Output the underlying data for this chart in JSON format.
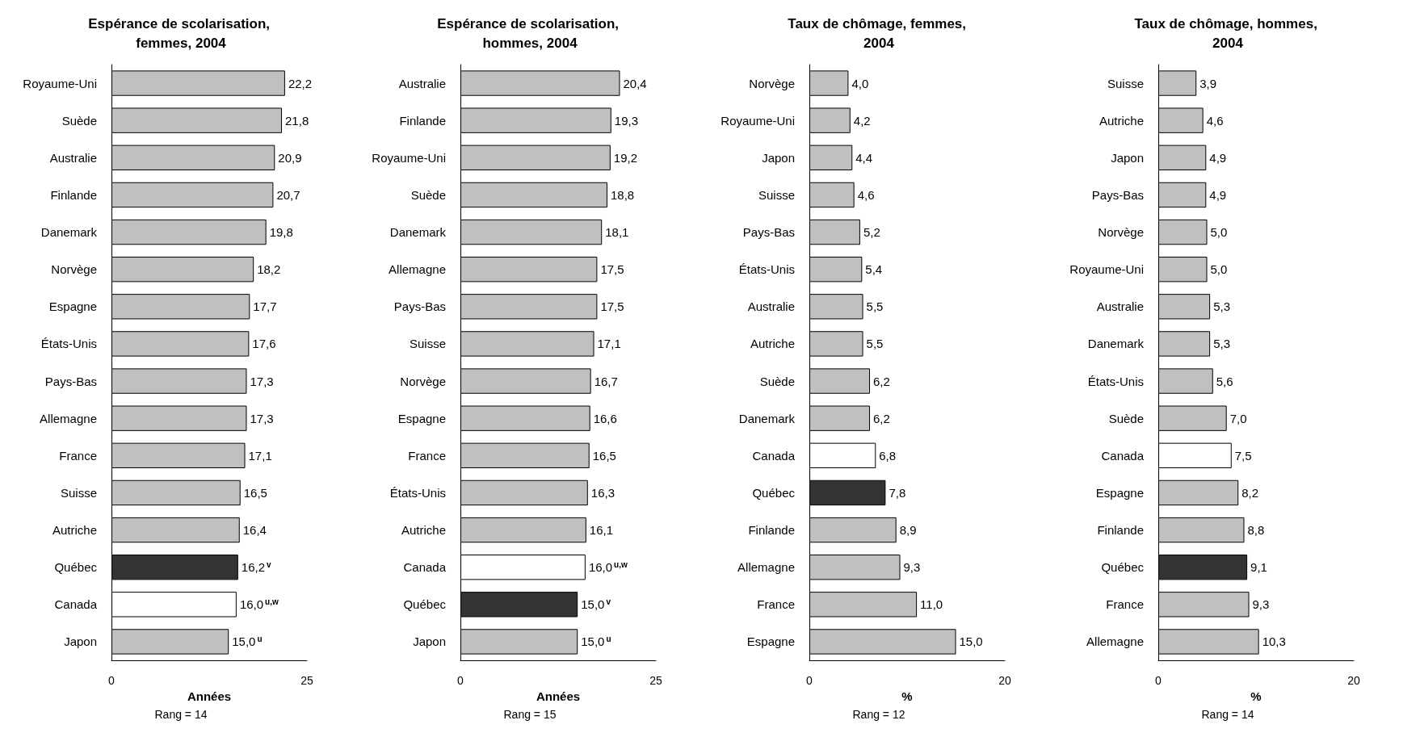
{
  "chart_data": [
    {
      "type": "bar",
      "orientation": "horizontal",
      "title": "Espérance de scolarisation, femmes, 2004",
      "xlabel": "Années",
      "xlim": [
        0,
        25
      ],
      "xticks": [
        0,
        25
      ],
      "grid": false,
      "categories": [
        "Royaume-Uni",
        "Suède",
        "Australie",
        "Finlande",
        "Danemark",
        "Norvège",
        "Espagne",
        "États-Unis",
        "Pays-Bas",
        "Allemagne",
        "France",
        "Suisse",
        "Autriche",
        "Québec",
        "Canada",
        "Japon"
      ],
      "values": [
        22.2,
        21.8,
        20.9,
        20.7,
        19.8,
        18.2,
        17.7,
        17.6,
        17.3,
        17.3,
        17.1,
        16.5,
        16.4,
        16.2,
        16.0,
        15.0
      ],
      "value_labels": [
        "22,2",
        "21,8",
        "20,9",
        "20,7",
        "19,8",
        "18,2",
        "17,7",
        "17,6",
        "17,3",
        "17,3",
        "17,1",
        "16,5",
        "16,4",
        "16,2$^{v}$",
        "16,0$^{u,w}$",
        "15,0$^{u}$"
      ],
      "colors": [
        "#c0c0c0",
        "#c0c0c0",
        "#c0c0c0",
        "#c0c0c0",
        "#c0c0c0",
        "#c0c0c0",
        "#c0c0c0",
        "#c0c0c0",
        "#c0c0c0",
        "#c0c0c0",
        "#c0c0c0",
        "#c0c0c0",
        "#c0c0c0",
        "#333333",
        "#ffffff",
        "#c0c0c0"
      ],
      "annotations": [
        "Rang = 14"
      ]
    },
    {
      "type": "bar",
      "orientation": "horizontal",
      "title": "Espérance de scolarisation, hommes, 2004",
      "xlabel": "Années",
      "xlim": [
        0,
        25
      ],
      "xticks": [
        0,
        25
      ],
      "grid": false,
      "categories": [
        "Australie",
        "Finlande",
        "Royaume-Uni",
        "Suède",
        "Danemark",
        "Allemagne",
        "Pays-Bas",
        "Suisse",
        "Norvège",
        "Espagne",
        "France",
        "États-Unis",
        "Autriche",
        "Canada",
        "Québec",
        "Japon"
      ],
      "values": [
        20.4,
        19.3,
        19.2,
        18.8,
        18.1,
        17.5,
        17.5,
        17.1,
        16.7,
        16.6,
        16.5,
        16.3,
        16.1,
        16.0,
        15.0,
        15.0
      ],
      "value_labels": [
        "20,4",
        "19,3",
        "19,2",
        "18,8",
        "18,1",
        "17,5",
        "17,5",
        "17,1",
        "16,7",
        "16,6",
        "16,5",
        "16,3",
        "16,1",
        "16,0$^{u,w}$",
        "15,0$^{v}$",
        "15,0$^{u}$"
      ],
      "colors": [
        "#c0c0c0",
        "#c0c0c0",
        "#c0c0c0",
        "#c0c0c0",
        "#c0c0c0",
        "#c0c0c0",
        "#c0c0c0",
        "#c0c0c0",
        "#c0c0c0",
        "#c0c0c0",
        "#c0c0c0",
        "#c0c0c0",
        "#c0c0c0",
        "#ffffff",
        "#333333",
        "#c0c0c0"
      ],
      "annotations": [
        "Rang = 15"
      ]
    },
    {
      "type": "bar",
      "orientation": "horizontal",
      "title": "Taux de chômage, femmes, 2004",
      "xlabel": "%",
      "xlim": [
        0,
        20
      ],
      "xticks": [
        0,
        20
      ],
      "grid": false,
      "categories": [
        "Norvège",
        "Royaume-Uni",
        "Japon",
        "Suisse",
        "Pays-Bas",
        "États-Unis",
        "Australie",
        "Autriche",
        "Suède",
        "Danemark",
        "Canada",
        "Québec",
        "Finlande",
        "Allemagne",
        "France",
        "Espagne"
      ],
      "values": [
        4.0,
        4.2,
        4.4,
        4.6,
        5.2,
        5.4,
        5.5,
        5.5,
        6.2,
        6.2,
        6.8,
        7.8,
        8.9,
        9.3,
        11.0,
        15.0
      ],
      "value_labels": [
        "4,0",
        "4,2",
        "4,4",
        "4,6",
        "5,2",
        "5,4",
        "5,5",
        "5,5",
        "6,2",
        "6,2",
        "6,8",
        "7,8",
        "8,9",
        "9,3",
        "11,0",
        "15,0"
      ],
      "colors": [
        "#c0c0c0",
        "#c0c0c0",
        "#c0c0c0",
        "#c0c0c0",
        "#c0c0c0",
        "#c0c0c0",
        "#c0c0c0",
        "#c0c0c0",
        "#c0c0c0",
        "#c0c0c0",
        "#ffffff",
        "#333333",
        "#c0c0c0",
        "#c0c0c0",
        "#c0c0c0",
        "#c0c0c0"
      ],
      "annotations": [
        "Rang = 12"
      ]
    },
    {
      "type": "bar",
      "orientation": "horizontal",
      "title": "Taux de chômage, hommes, 2004",
      "xlabel": "%",
      "xlim": [
        0,
        20
      ],
      "xticks": [
        0,
        20
      ],
      "grid": false,
      "categories": [
        "Suisse",
        "Autriche",
        "Japon",
        "Pays-Bas",
        "Norvège",
        "Royaume-Uni",
        "Australie",
        "Danemark",
        "États-Unis",
        "Suède",
        "Canada",
        "Espagne",
        "Finlande",
        "Québec",
        "France",
        "Allemagne"
      ],
      "values": [
        3.9,
        4.6,
        4.9,
        4.9,
        5.0,
        5.0,
        5.3,
        5.3,
        5.6,
        7.0,
        7.5,
        8.2,
        8.8,
        9.1,
        9.3,
        10.3
      ],
      "value_labels": [
        "3,9",
        "4,6",
        "4,9",
        "4,9",
        "5,0",
        "5,0",
        "5,3",
        "5,3",
        "5,6",
        "7,0",
        "7,5",
        "8,2",
        "8,8",
        "9,1",
        "9,3",
        "10,3"
      ],
      "colors": [
        "#c0c0c0",
        "#c0c0c0",
        "#c0c0c0",
        "#c0c0c0",
        "#c0c0c0",
        "#c0c0c0",
        "#c0c0c0",
        "#c0c0c0",
        "#c0c0c0",
        "#c0c0c0",
        "#ffffff",
        "#c0c0c0",
        "#c0c0c0",
        "#333333",
        "#c0c0c0",
        "#c0c0c0"
      ],
      "annotations": [
        "Rang = 14"
      ]
    }
  ]
}
